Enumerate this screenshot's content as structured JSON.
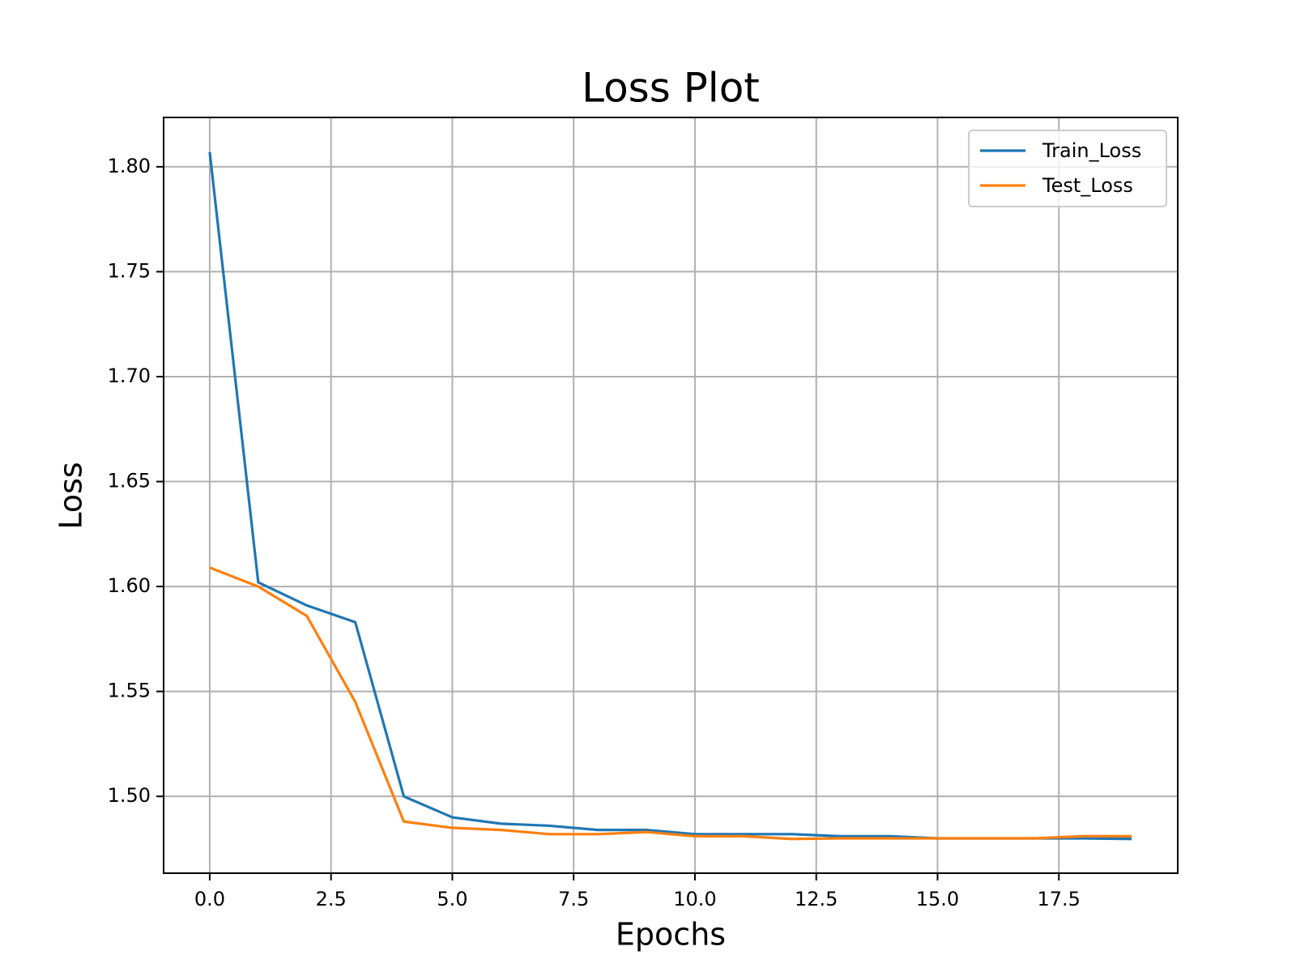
{
  "chart_data": {
    "type": "line",
    "title": "Loss Plot",
    "x_label": "Epochs",
    "y_label": "Loss",
    "x": [
      0,
      1,
      2,
      3,
      4,
      5,
      6,
      7,
      8,
      9,
      10,
      11,
      12,
      13,
      14,
      15,
      16,
      17,
      18,
      19
    ],
    "series": [
      {
        "name": "Train_Loss",
        "color": "#1f77b4",
        "values": [
          1.807,
          1.602,
          1.591,
          1.583,
          1.5,
          1.49,
          1.487,
          1.486,
          1.484,
          1.484,
          1.482,
          1.482,
          1.482,
          1.481,
          1.481,
          1.48,
          1.48,
          1.48,
          1.48,
          1.4797
        ]
      },
      {
        "name": "Test_Loss",
        "color": "#ff7f0e",
        "values": [
          1.609,
          1.6,
          1.586,
          1.545,
          1.488,
          1.485,
          1.484,
          1.482,
          1.482,
          1.483,
          1.481,
          1.481,
          1.4797,
          1.48,
          1.48,
          1.48,
          1.48,
          1.48,
          1.481,
          1.481
        ]
      }
    ],
    "xlim": [
      -0.95,
      19.95
    ],
    "xticks": [
      {
        "value": 0,
        "label": "0.0"
      },
      2.5,
      {
        "value": 5,
        "label": "5.0"
      },
      7.5,
      {
        "value": 10,
        "label": "10.0"
      },
      12.5,
      {
        "value": 15,
        "label": "15.0"
      },
      17.5
    ],
    "ylim": [
      1.4634,
      1.8235
    ],
    "yticks": [
      {
        "value": 1.5,
        "label": "1.50"
      },
      1.55,
      {
        "value": 1.6,
        "label": "1.60"
      },
      1.65,
      {
        "value": 1.7,
        "label": "1.70"
      },
      1.75,
      {
        "value": 1.8,
        "label": "1.80"
      }
    ],
    "grid": true,
    "legend": "upper right"
  }
}
